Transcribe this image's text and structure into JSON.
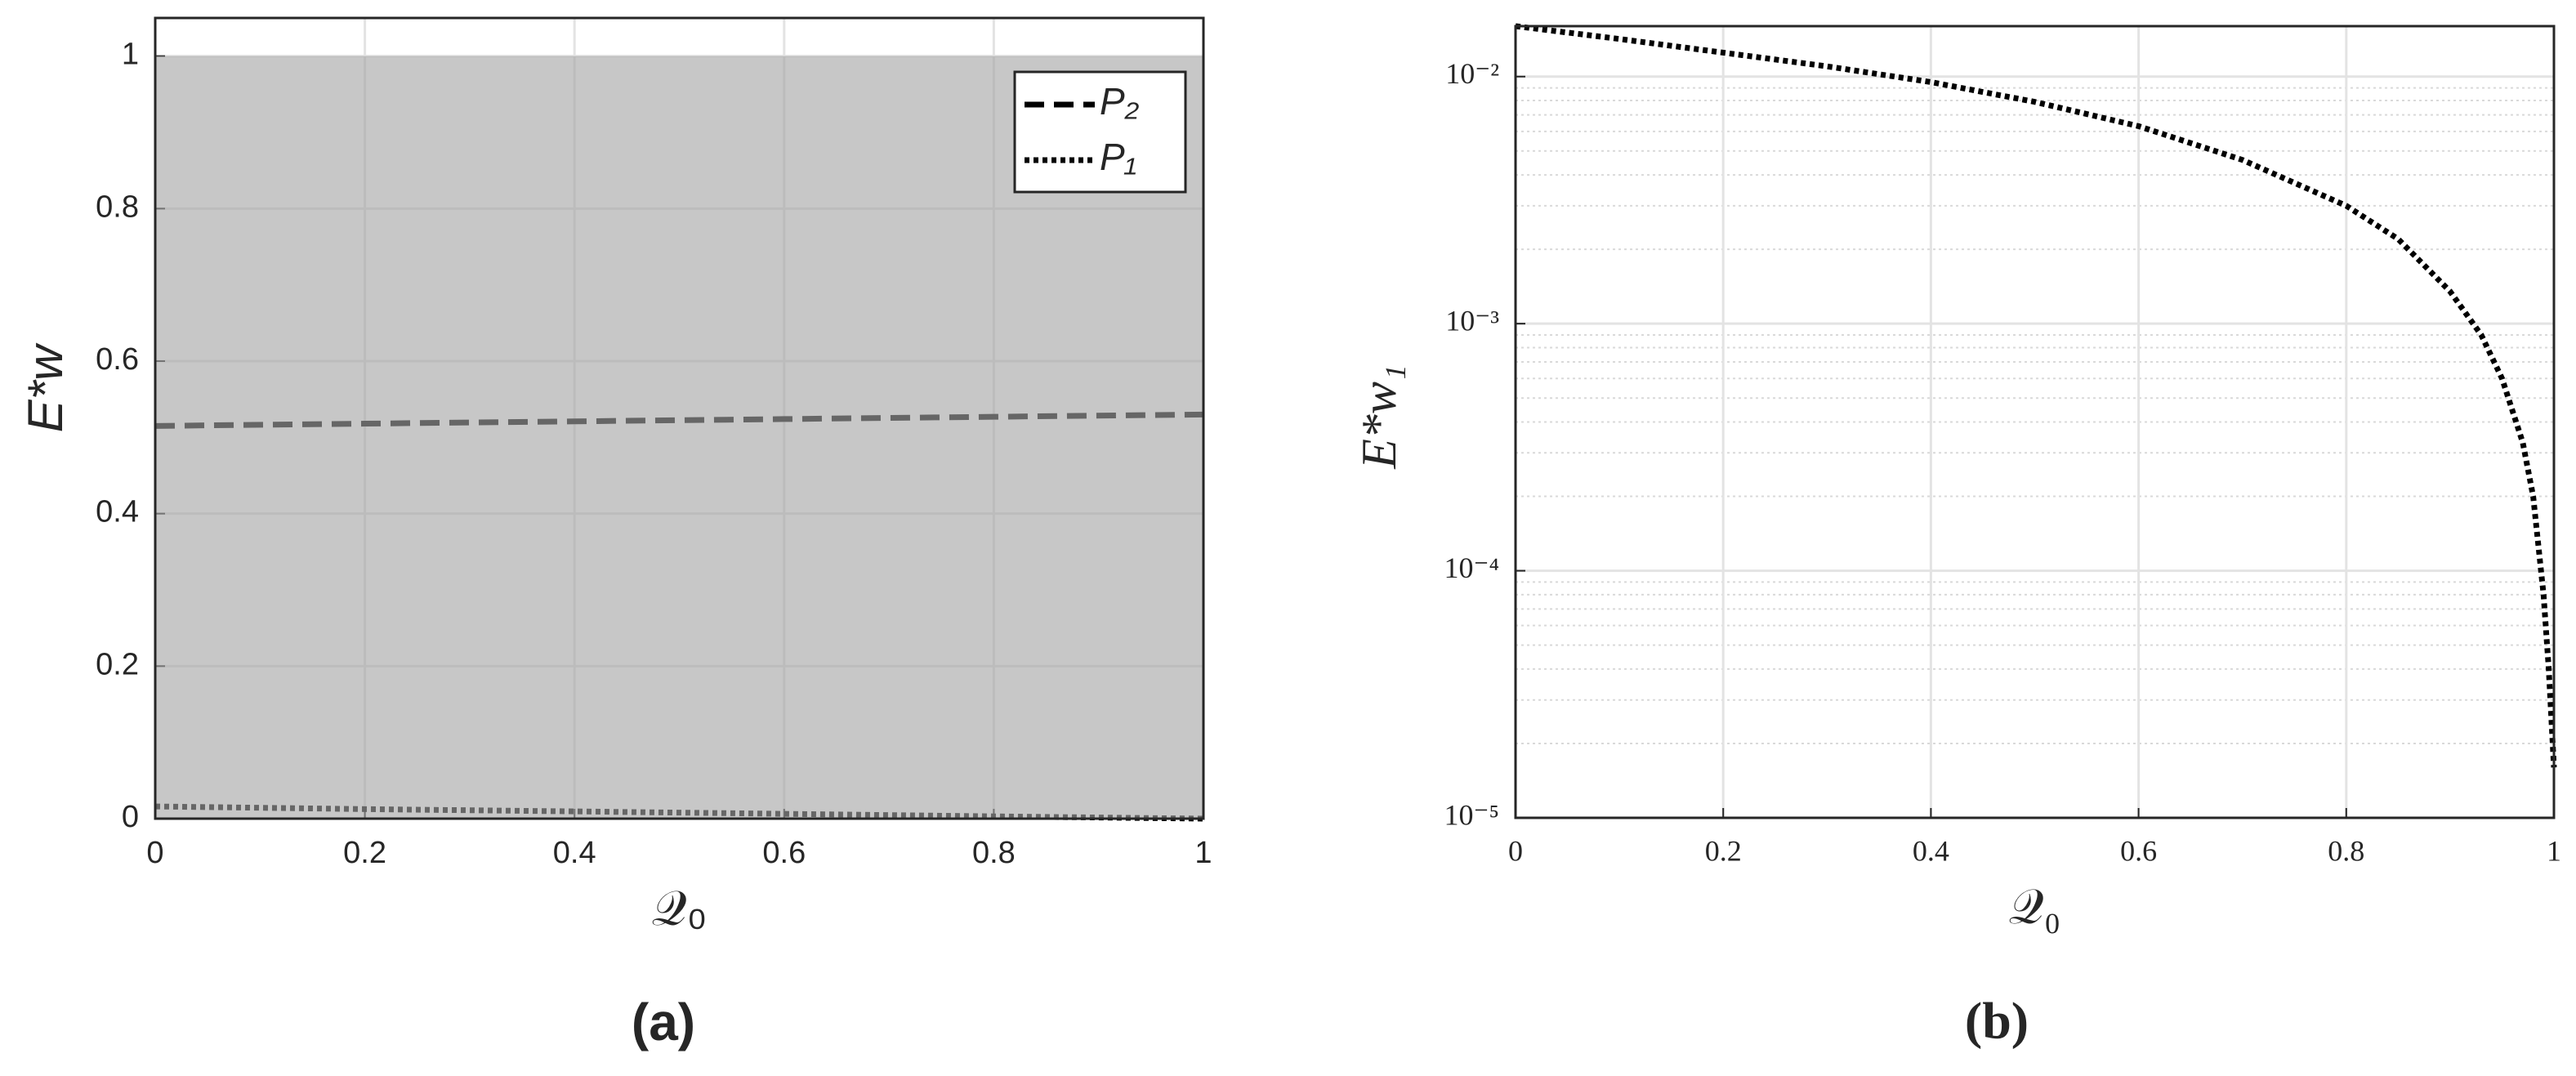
{
  "chart_data": [
    {
      "type": "line",
      "caption": "(a)",
      "xlabel": "𝒬₀",
      "ylabel": "E*w",
      "x": [
        0,
        0.2,
        0.4,
        0.6,
        0.8,
        1
      ],
      "series": [
        {
          "name": "P₂",
          "color": "#000000",
          "style": "dashed",
          "values": [
            0.515,
            0.518,
            0.521,
            0.524,
            0.527,
            0.53
          ]
        },
        {
          "name": "P₁",
          "color": "#000000",
          "style": "dotted",
          "values": [
            0.016,
            0.0125,
            0.0095,
            0.0063,
            0.003,
            0
          ]
        }
      ],
      "shade": [
        0,
        1
      ],
      "shade_color": "#a5a5a5",
      "xlim": [
        0,
        1
      ],
      "ylim": [
        0,
        1.05
      ],
      "xticks": [
        0,
        0.2,
        0.4,
        0.6,
        0.8,
        1
      ],
      "yticks": [
        0,
        0.2,
        0.4,
        0.6,
        0.8,
        1
      ],
      "grid": true,
      "legend": "upper right"
    },
    {
      "type": "line",
      "caption": "(b)",
      "xlabel": "𝒬₀",
      "ylabel": "E*w₁",
      "x": [
        0,
        0.1,
        0.2,
        0.3,
        0.4,
        0.5,
        0.6,
        0.7,
        0.8,
        0.85,
        0.9,
        0.93,
        0.95,
        0.97,
        0.98,
        0.99,
        0.995,
        1
      ],
      "series": [
        {
          "name": "E*w₁",
          "color": "#000000",
          "style": "dotted",
          "values": [
            0.016,
            0.0142,
            0.0125,
            0.011,
            0.0095,
            0.0079,
            0.0063,
            0.0046,
            0.003,
            0.0022,
            0.00135,
            0.0009,
            0.0006,
            0.00033,
            0.0002,
            8e-05,
            4e-05,
            1.6e-05
          ]
        }
      ],
      "xlim": [
        0,
        1
      ],
      "ylim": [
        1e-05,
        0.016
      ],
      "log_y": true,
      "xticks": [
        0,
        0.2,
        0.4,
        0.6,
        0.8,
        1
      ],
      "yticks": [
        {
          "value": 1e-05,
          "label": "10⁻⁵"
        },
        {
          "value": 0.0001,
          "label": "10⁻⁴"
        },
        {
          "value": 0.001,
          "label": "10⁻³"
        },
        {
          "value": 0.01,
          "label": "10⁻²"
        }
      ],
      "grid": true,
      "minor_grid": true
    }
  ]
}
